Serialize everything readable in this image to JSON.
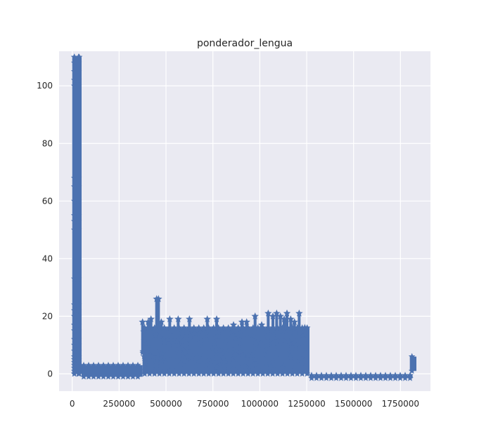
{
  "chart_data": {
    "type": "line",
    "title": "ponderador_lengua",
    "xlabel": "",
    "ylabel": "",
    "xlim": [
      -70000,
      1910000
    ],
    "ylim": [
      -6,
      112
    ],
    "x_ticks": [
      0,
      250000,
      500000,
      750000,
      1000000,
      1250000,
      1500000,
      1750000
    ],
    "x_tick_labels": [
      "0",
      "250000",
      "500000",
      "750000",
      "1000000",
      "1250000",
      "1500000",
      "1750000"
    ],
    "y_ticks": [
      0,
      20,
      40,
      60,
      80,
      100
    ],
    "y_tick_labels": [
      "0",
      "20",
      "40",
      "60",
      "80",
      "100"
    ],
    "grid": true,
    "marker": "star",
    "colors": {
      "series": "#4C72B0",
      "background": "#EAEAF2",
      "grid": "#FFFFFF"
    },
    "series": [
      {
        "segments": [
          {
            "x_start": 0,
            "x_end": 50000,
            "y_min": 0,
            "y_max": 110,
            "marker_levels": [
              110,
              108,
              105,
              102,
              100,
              68,
              65,
              60,
              55,
              53,
              50,
              33,
              24,
              22,
              20,
              17,
              15,
              12,
              10,
              8,
              6,
              5,
              4,
              3,
              2,
              1,
              0
            ]
          },
          {
            "x_start": 50000,
            "x_end": 375000,
            "y_min": -1,
            "y_max": 3
          },
          {
            "x_start": 375000,
            "x_end": 1265000,
            "y_min": 0,
            "y_max": 16
          },
          {
            "x_start": 1265000,
            "x_end": 1815000,
            "y_min": -1.5,
            "y_max": -0.5
          },
          {
            "x_start": 1800000,
            "x_end": 1835000,
            "y_min": 1,
            "y_max": 6
          }
        ],
        "spikes": [
          {
            "x": 375000,
            "y": 18
          },
          {
            "x": 405000,
            "y": 18
          },
          {
            "x": 420000,
            "y": 19
          },
          {
            "x": 450000,
            "y": 26
          },
          {
            "x": 460000,
            "y": 26
          },
          {
            "x": 475000,
            "y": 18
          },
          {
            "x": 520000,
            "y": 19
          },
          {
            "x": 565000,
            "y": 19
          },
          {
            "x": 625000,
            "y": 19
          },
          {
            "x": 675000,
            "y": 15
          },
          {
            "x": 720000,
            "y": 19
          },
          {
            "x": 770000,
            "y": 19
          },
          {
            "x": 860000,
            "y": 17
          },
          {
            "x": 905000,
            "y": 18
          },
          {
            "x": 930000,
            "y": 18
          },
          {
            "x": 975000,
            "y": 20
          },
          {
            "x": 1010000,
            "y": 17
          },
          {
            "x": 1045000,
            "y": 21
          },
          {
            "x": 1070000,
            "y": 20
          },
          {
            "x": 1090000,
            "y": 21
          },
          {
            "x": 1110000,
            "y": 20
          },
          {
            "x": 1130000,
            "y": 19
          },
          {
            "x": 1145000,
            "y": 21
          },
          {
            "x": 1165000,
            "y": 19
          },
          {
            "x": 1185000,
            "y": 18
          },
          {
            "x": 1210000,
            "y": 21
          },
          {
            "x": 1240000,
            "y": 16
          }
        ]
      }
    ]
  }
}
